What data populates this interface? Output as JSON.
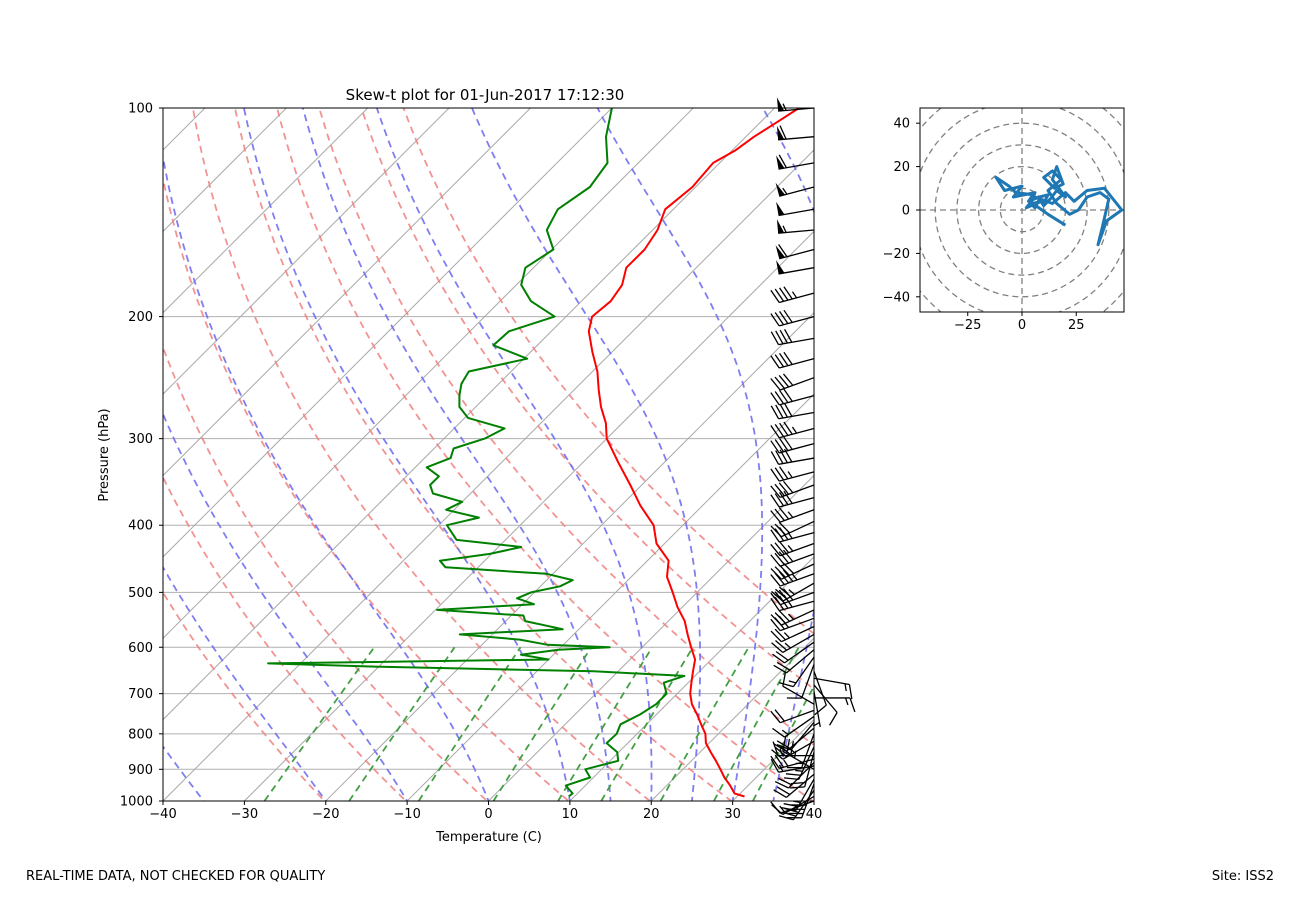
{
  "footer": {
    "quality_note": "REAL-TIME DATA, NOT CHECKED FOR QUALITY",
    "site": "Site: ISS2"
  },
  "colors": {
    "temperature": "#ff0000",
    "dewpoint": "#008000",
    "dry_adiabat": "#f08080",
    "moist_adiabat": "#7070ee",
    "mixing_ratio": "#3a9a3a",
    "isotherm": "#aaaaaa",
    "hodograph": "#1f77b4",
    "wind_barb": "#000000"
  },
  "chart_data": [
    {
      "type": "line",
      "subtype": "skew-t log-p",
      "title": "Skew-t plot for 01-Jun-2017 17:12:30",
      "xlabel": "Temperature (C)",
      "ylabel": "Pressure (hPa)",
      "xlim": [
        -40,
        40
      ],
      "ylim": [
        1000,
        100
      ],
      "y_scale": "log",
      "x_ticks": [
        -40,
        -30,
        -20,
        -10,
        0,
        10,
        20,
        30,
        40
      ],
      "x_tick_labels": [
        "−40",
        "−30",
        "−20",
        "−10",
        "0",
        "10",
        "20",
        "30",
        "40"
      ],
      "y_ticks": [
        1000,
        900,
        800,
        700,
        600,
        500,
        400,
        300,
        200,
        100
      ],
      "y_tick_labels": [
        "1000",
        "900",
        "800",
        "700",
        "600",
        "500",
        "400",
        "300",
        "200",
        "100"
      ],
      "grid": true,
      "series": [
        {
          "key": "temperature",
          "p": [
            985,
            975,
            950,
            925,
            900,
            875,
            850,
            825,
            800,
            775,
            750,
            725,
            700,
            675,
            650,
            625,
            600,
            575,
            550,
            525,
            500,
            475,
            450,
            425,
            400,
            375,
            350,
            325,
            300,
            285,
            270,
            255,
            240,
            225,
            210,
            200,
            190,
            180,
            170,
            160,
            150,
            140,
            130,
            120,
            115,
            110,
            105,
            100
          ],
          "t": [
            30.9,
            29.3,
            27.8,
            26.1,
            24.6,
            23.0,
            21.3,
            19.6,
            18.4,
            16.7,
            15.0,
            13.1,
            11.6,
            10.4,
            9.2,
            8.0,
            6.0,
            4.0,
            2.0,
            -0.6,
            -3.0,
            -5.6,
            -7.4,
            -11.0,
            -13.6,
            -17.6,
            -21.4,
            -25.6,
            -30.0,
            -32.0,
            -34.6,
            -37.0,
            -39.4,
            -42.4,
            -45.4,
            -46.8,
            -46.4,
            -47.0,
            -48.6,
            -48.6,
            -49.4,
            -51.0,
            -50.4,
            -50.8,
            -49.6,
            -49.0,
            -48.0,
            -47.0
          ]
        },
        {
          "key": "dewpoint",
          "p": [
            985,
            975,
            950,
            925,
            900,
            875,
            850,
            825,
            800,
            775,
            750,
            725,
            700,
            675,
            660,
            650,
            640,
            633,
            625,
            615,
            605,
            600,
            595,
            585,
            575,
            565,
            550,
            540,
            530,
            520,
            510,
            500,
            490,
            480,
            470,
            460,
            450,
            440,
            430,
            420,
            400,
            390,
            380,
            370,
            360,
            350,
            340,
            330,
            320,
            310,
            300,
            290,
            280,
            270,
            260,
            250,
            240,
            230,
            220,
            210,
            200,
            190,
            180,
            170,
            160,
            150,
            140,
            130,
            120,
            110,
            100
          ],
          "td": [
            9.3,
            9.4,
            7.6,
            9.6,
            8.0,
            11.0,
            9.8,
            7.4,
            7.5,
            6.8,
            8.0,
            8.7,
            8.7,
            7.0,
            8.7,
            -3.0,
            -30.0,
            -44.0,
            -10.0,
            -14.0,
            -10.0,
            -4.0,
            -12.0,
            -16.0,
            -24.0,
            -12.0,
            -17.6,
            -18.5,
            -29.8,
            -18.6,
            -21.4,
            -20.4,
            -17.6,
            -16.8,
            -20.8,
            -34.0,
            -35.5,
            -30.2,
            -27.2,
            -36.0,
            -39.0,
            -36.0,
            -41.0,
            -40.0,
            -44.6,
            -46.0,
            -46.0,
            -48.6,
            -46.8,
            -47.6,
            -45.0,
            -43.8,
            -49.6,
            -52.0,
            -53.4,
            -54.6,
            -55.2,
            -49.6,
            -55.4,
            -55.2,
            -51.4,
            -56.2,
            -59.4,
            -61.0,
            -59.8,
            -63.0,
            -64.2,
            -63.0,
            -63.8,
            -67.2,
            -70.0
          ]
        }
      ],
      "reference_lines": {
        "dry_adiabats_theta_K": [
          253,
          263,
          273,
          283,
          293,
          303,
          313,
          323,
          333,
          343
        ],
        "moist_adiabats_start_T_C": [
          -35,
          -20,
          -10,
          0,
          10,
          15,
          20,
          25,
          30,
          35
        ],
        "mixing_ratios_g_per_kg": [
          0.4,
          1,
          2,
          4,
          7,
          10,
          16,
          24,
          32
        ],
        "mixing_ratio_top_hPa": 600
      },
      "wind_barbs": {
        "p": [
          1000,
          985,
          965,
          945,
          930,
          915,
          900,
          890,
          880,
          870,
          860,
          850,
          835,
          820,
          800,
          785,
          770,
          755,
          740,
          725,
          710,
          695,
          680,
          665,
          650,
          635,
          620,
          605,
          590,
          575,
          560,
          545,
          530,
          515,
          500,
          485,
          470,
          455,
          440,
          425,
          410,
          395,
          380,
          365,
          350,
          335,
          320,
          305,
          290,
          275,
          260,
          245,
          230,
          215,
          200,
          185,
          170,
          160,
          150,
          140,
          130,
          120,
          110,
          100
        ],
        "speed_kt": [
          15,
          10,
          30,
          40,
          25,
          20,
          35,
          15,
          20,
          25,
          15,
          20,
          25,
          35,
          15,
          20,
          10,
          15,
          20,
          10,
          15,
          5,
          10,
          15,
          10,
          10,
          15,
          20,
          20,
          25,
          25,
          30,
          35,
          40,
          40,
          35,
          45,
          40,
          40,
          35,
          35,
          30,
          35,
          40,
          40,
          35,
          40,
          40,
          45,
          40,
          40,
          40,
          40,
          40,
          40,
          45,
          50,
          60,
          55,
          50,
          55,
          60,
          60,
          55
        ],
        "direction_deg": [
          250,
          240,
          215,
          200,
          210,
          230,
          300,
          260,
          225,
          255,
          270,
          195,
          205,
          240,
          200,
          230,
          220,
          235,
          250,
          300,
          90,
          170,
          140,
          100,
          160,
          200,
          215,
          230,
          235,
          240,
          245,
          250,
          245,
          255,
          250,
          240,
          250,
          245,
          250,
          250,
          255,
          245,
          250,
          255,
          250,
          255,
          260,
          255,
          255,
          260,
          255,
          250,
          255,
          260,
          255,
          255,
          260,
          255,
          265,
          260,
          255,
          260,
          265,
          265
        ]
      }
    },
    {
      "type": "line",
      "subtype": "hodograph",
      "xlim": [
        -47,
        47
      ],
      "ylim": [
        -47,
        47
      ],
      "x_ticks": [
        -25,
        0,
        25
      ],
      "x_tick_labels": [
        "−25",
        "0",
        "25"
      ],
      "y_ticks": [
        -40,
        -20,
        0,
        20,
        40
      ],
      "y_tick_labels": [
        "−40",
        "−20",
        "0",
        "20",
        "40"
      ],
      "range_rings": [
        10,
        20,
        30,
        40,
        50,
        60
      ],
      "series": [
        {
          "key": "hodograph",
          "u": [
            20,
            12,
            5,
            9,
            2,
            6,
            14,
            20,
            24,
            30,
            38,
            46,
            39,
            35,
            37,
            40,
            36,
            30,
            26,
            22,
            16,
            12,
            18,
            14,
            10,
            15,
            19,
            16,
            14,
            17,
            20,
            16,
            13,
            10,
            8,
            6,
            4,
            6,
            -4,
            0,
            -8,
            -12,
            -6,
            -3,
            5,
            3,
            8,
            12,
            10
          ],
          "v": [
            -7,
            -2,
            3,
            4,
            1,
            6,
            3,
            8,
            4,
            9,
            10,
            0,
            -5,
            -16,
            -8,
            5,
            8,
            6,
            0,
            -2,
            3,
            9,
            14,
            18,
            15,
            10,
            12,
            20,
            14,
            10,
            6,
            9,
            5,
            2,
            5,
            1,
            3,
            8,
            6,
            11,
            9,
            15,
            11,
            8,
            7,
            4,
            6,
            7,
            3
          ]
        }
      ]
    }
  ]
}
